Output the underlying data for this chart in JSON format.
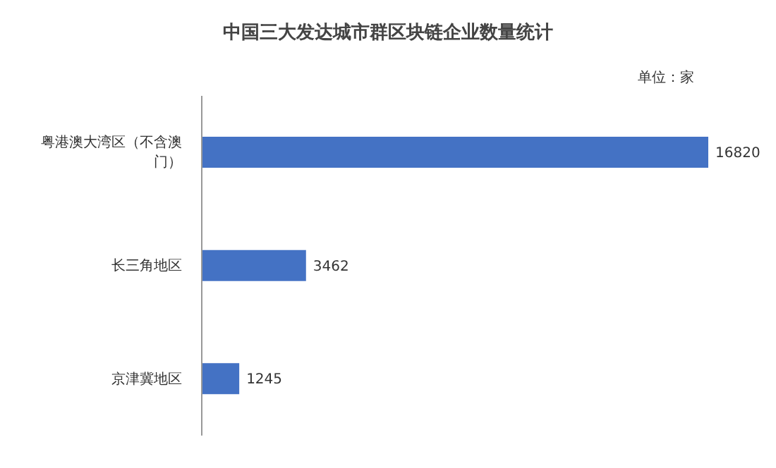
{
  "chart_data": {
    "type": "bar",
    "orientation": "horizontal",
    "title": "中国三大发达城市群区块链企业数量统计",
    "annotations": [
      "单位：家"
    ],
    "categories": [
      "粤港澳大湾区（不含澳门）",
      "长三角地区",
      "京津冀地区"
    ],
    "values": [
      16820,
      3462,
      1245
    ],
    "color": "#4472c4",
    "data_labels": true
  }
}
